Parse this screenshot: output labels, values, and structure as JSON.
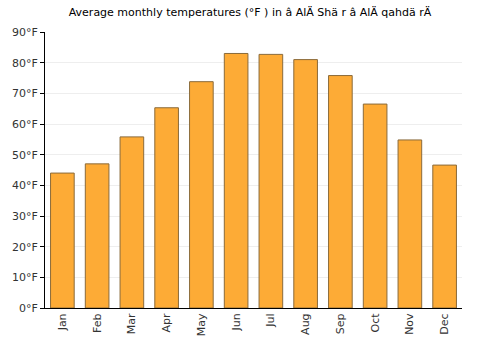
{
  "chart_data": {
    "type": "bar",
    "title": "Average monthly temperatures (°F ) in â AlÄ Shä r â AlÄ qahdä rÄ",
    "categories": [
      "Jan",
      "Feb",
      "Mar",
      "Apr",
      "May",
      "Jun",
      "Jul",
      "Aug",
      "Sep",
      "Oct",
      "Nov",
      "Dec"
    ],
    "values": [
      44,
      47,
      55.8,
      65.3,
      73.8,
      83,
      82.7,
      81,
      75.8,
      66.5,
      54.8,
      46.6
    ],
    "color": "#fdab36",
    "ylim": [
      0,
      90
    ],
    "yticks": [
      {
        "value": 0,
        "label": "0°F"
      },
      {
        "value": 10,
        "label": "10°F"
      },
      {
        "value": 20,
        "label": "20°F"
      },
      {
        "value": 30,
        "label": "30°F"
      },
      {
        "value": 40,
        "label": "40°F"
      },
      {
        "value": 50,
        "label": "50°F"
      },
      {
        "value": 60,
        "label": "60°F"
      },
      {
        "value": 70,
        "label": "70°F"
      },
      {
        "value": 80,
        "label": "80°F"
      },
      {
        "value": 90,
        "label": "90°F"
      }
    ],
    "grid": true
  }
}
